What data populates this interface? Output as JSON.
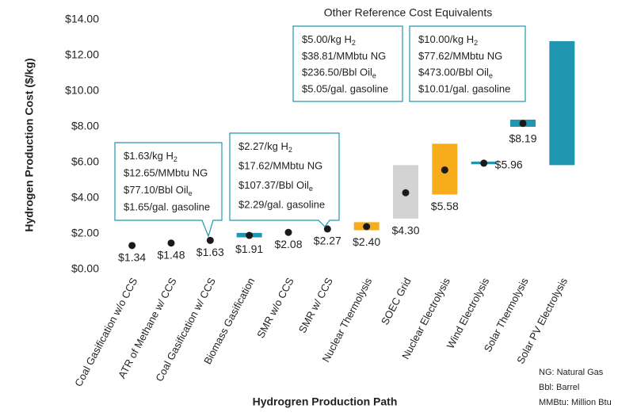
{
  "chart_data": {
    "type": "range_dot",
    "reference_title": "Other Reference Cost Equivalents",
    "y_label": "Hydrogen Production Cost ($/kg)",
    "x_label": "Hydrogren Production Path",
    "categories": [
      "Coal Gasification w/o CCS",
      "ATR of Methane w/ CCS",
      "Coal Gasification w/ CCS",
      "Biomass Gasification",
      "SMR w/o CCS",
      "SMR w/ CCS",
      "Nuclear Thermolysis",
      "SOEC Grid",
      "Nuclear Electrolysis",
      "Wind Electrolysis",
      "Solar Thermolysis",
      "Solar PV Electrolysis"
    ],
    "values": [
      1.34,
      1.48,
      1.63,
      1.91,
      2.08,
      2.27,
      2.4,
      4.3,
      5.58,
      5.96,
      8.19,
      null
    ],
    "value_labels": [
      "$1.34",
      "$1.48",
      "$1.63",
      "$1.91",
      "$2.08",
      "$2.27",
      "$2.40",
      "$4.30",
      "$5.58",
      "$5.96",
      "$8.19",
      null
    ],
    "ranges": [
      null,
      null,
      null,
      [
        1.8,
        2.05
      ],
      null,
      null,
      [
        2.2,
        2.65
      ],
      [
        2.85,
        5.85
      ],
      [
        4.2,
        7.05
      ],
      [
        5.9,
        6.05
      ],
      [
        8.0,
        8.4
      ],
      [
        5.85,
        12.8
      ]
    ],
    "range_colors": [
      null,
      null,
      null,
      "#2196b0",
      null,
      null,
      "#f7ac1c",
      "#d3d3d3",
      "#f7ac1c",
      "#2196b0",
      "#2196b0",
      "#2196b0"
    ],
    "point_color": "#1a1a1a",
    "ylim": [
      0,
      14
    ],
    "yticks": [
      {
        "value": 0,
        "label": "$0.00"
      },
      {
        "value": 2,
        "label": "$2.00"
      },
      {
        "value": 4,
        "label": "$4.00"
      },
      {
        "value": 6,
        "label": "$6.00"
      },
      {
        "value": 8,
        "label": "$8.00"
      },
      {
        "value": 10,
        "label": "$10.00"
      },
      {
        "value": 12,
        "label": "$12.00"
      },
      {
        "value": 14,
        "label": "$14.00"
      }
    ],
    "callouts": [
      {
        "lines": [
          {
            "text": "$1.63/kg H",
            "sub": "2"
          },
          {
            "text": "$12.65/MMbtu NG"
          },
          {
            "text": "$77.10/Bbl Oil",
            "sub": "e"
          },
          {
            "text": "$1.65/gal. gasoline"
          }
        ]
      },
      {
        "lines": [
          {
            "text": "$2.27/kg H",
            "sub": "2"
          },
          {
            "text": "$17.62/MMbtu NG"
          },
          {
            "text": "$107.37/Bbl Oil",
            "sub": "e"
          },
          {
            "text": "$2.29/gal. gasoline"
          }
        ]
      },
      {
        "lines": [
          {
            "text": "$5.00/kg H",
            "sub": "2"
          },
          {
            "text": "$38.81/MMbtu NG"
          },
          {
            "text": "$236.50/Bbl Oil",
            "sub": "e"
          },
          {
            "text": "$5.05/gal. gasoline"
          }
        ]
      },
      {
        "lines": [
          {
            "text": "$10.00/kg H",
            "sub": "2"
          },
          {
            "text": "$77.62/MMbtu NG"
          },
          {
            "text": "$473.00/Bbl Oil",
            "sub": "e"
          },
          {
            "text": "$10.01/gal. gasoline"
          }
        ]
      }
    ],
    "notes": [
      "NG: Natural Gas",
      "Bbl: Barrel",
      "MMBtu: Million Btu"
    ]
  }
}
